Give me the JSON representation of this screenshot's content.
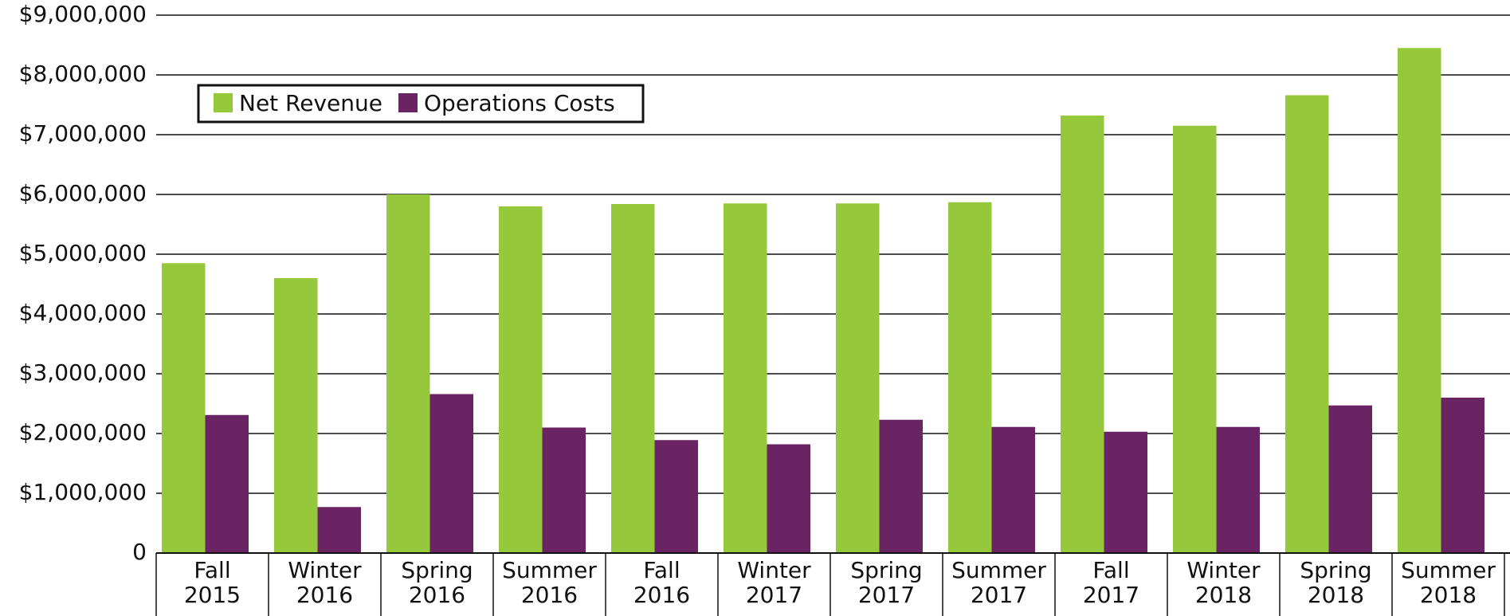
{
  "chart_data": {
    "type": "bar",
    "categories": [
      "Fall 2015",
      "Winter 2016",
      "Spring 2016",
      "Summer 2016",
      "Fall 2016",
      "Winter 2017",
      "Spring 2017",
      "Summer 2017",
      "Fall 2017",
      "Winter 2018",
      "Spring 2018",
      "Summer 2018"
    ],
    "series": [
      {
        "name": "Net Revenue",
        "color": "#96c83c",
        "values": [
          4850000,
          4600000,
          6000000,
          5800000,
          5840000,
          5850000,
          5850000,
          5870000,
          7320000,
          7150000,
          7660000,
          8450000
        ]
      },
      {
        "name": "Operations Costs",
        "color": "#6b2463",
        "values": [
          2310000,
          770000,
          2660000,
          2100000,
          1890000,
          1820000,
          2230000,
          2110000,
          2030000,
          2110000,
          2470000,
          2600000
        ]
      }
    ],
    "ylim": [
      0,
      9000000
    ],
    "yticks": [
      0,
      {
        "value": 1000000,
        "label": "$1,000,000"
      },
      {
        "value": 2000000,
        "label": "$2,000,000"
      },
      {
        "value": 3000000,
        "label": "$3,000,000"
      },
      {
        "value": 4000000,
        "label": "$4,000,000"
      },
      {
        "value": 5000000,
        "label": "$5,000,000"
      },
      {
        "value": 6000000,
        "label": "$6,000,000"
      },
      {
        "value": 7000000,
        "label": "$7,000,000"
      },
      {
        "value": 8000000,
        "label": "$8,000,000"
      },
      {
        "value": 9000000,
        "label": "$9,000,000"
      }
    ],
    "grid": true,
    "legend": "top-left"
  }
}
